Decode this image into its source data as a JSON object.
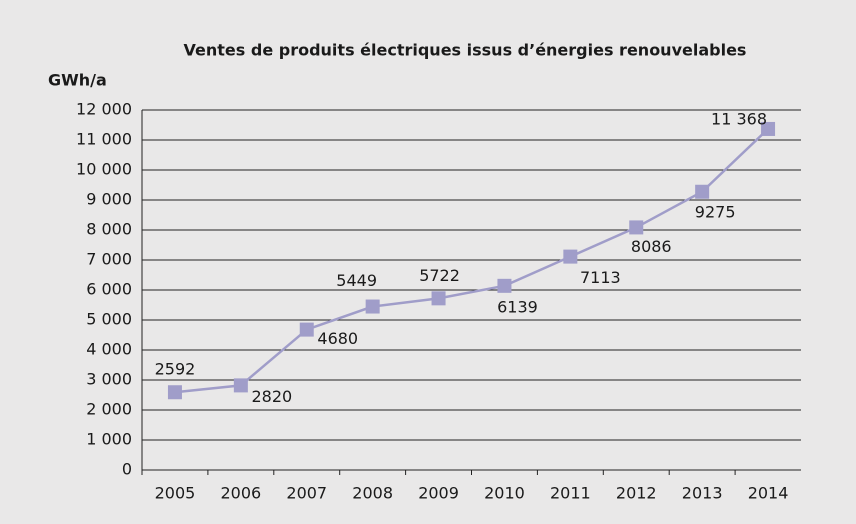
{
  "chart_data": {
    "type": "line",
    "title": "Ventes de produits électriques issus d’énergies renouvelables",
    "y_label": "GWh/a",
    "categories": [
      "2005",
      "2006",
      "2007",
      "2008",
      "2009",
      "2010",
      "2011",
      "2012",
      "2013",
      "2014"
    ],
    "series": [
      {
        "name": "Ventes",
        "color": "#a09dc9",
        "values": [
          2592,
          2820,
          4680,
          5449,
          5722,
          6139,
          7113,
          8086,
          9275,
          11368
        ],
        "value_labels": [
          "2592",
          "2820",
          "4680",
          "5449",
          "5722",
          "6139",
          "7113",
          "8086",
          "9275",
          "11 368"
        ]
      }
    ],
    "ylim": [
      0,
      12000
    ],
    "yticks": [
      0,
      {
        "value": 1000,
        "label": "1 000"
      },
      {
        "value": 2000,
        "label": "2 000"
      },
      {
        "value": 3000,
        "label": "3 000"
      },
      {
        "value": 4000,
        "label": "4 000"
      },
      {
        "value": 5000,
        "label": "5 000"
      },
      {
        "value": 6000,
        "label": "6 000"
      },
      {
        "value": 7000,
        "label": "7 000"
      },
      {
        "value": 8000,
        "label": "8 000"
      },
      {
        "value": 9000,
        "label": "9 000"
      },
      {
        "value": 10000,
        "label": "10 000"
      },
      {
        "value": 11000,
        "label": "11 000"
      },
      {
        "value": 12000,
        "label": "12 000"
      }
    ],
    "grid": true
  }
}
